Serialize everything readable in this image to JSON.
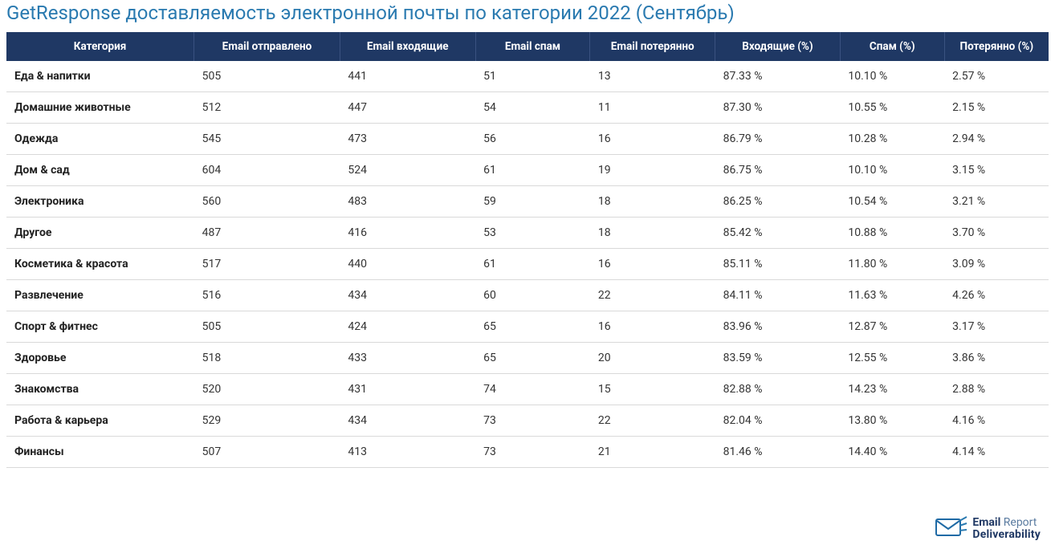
{
  "title": "GetResponse доставляемость электронной почты по категории 2022 (Сентябрь)",
  "colors": {
    "title": "#2a7ab0",
    "header_bg": "#1f3864",
    "header_text": "#ffffff",
    "row_border": "#d9d9d9",
    "cell_text": "#333333",
    "category_text": "#222222"
  },
  "table": {
    "columns": [
      "Категория",
      "Email отправлено",
      "Email входящие",
      "Email спам",
      "Email потерянно",
      "Входящие (%)",
      "Спам (%)",
      "Потерянно (%)"
    ],
    "column_widths_pct": [
      18,
      14,
      13,
      11,
      12,
      12,
      10,
      10
    ],
    "rows": [
      [
        "Еда & напитки",
        "505",
        "441",
        "51",
        "13",
        "87.33 %",
        "10.10 %",
        "2.57 %"
      ],
      [
        "Домашние животные",
        "512",
        "447",
        "54",
        "11",
        "87.30 %",
        "10.55 %",
        "2.15 %"
      ],
      [
        "Одежда",
        "545",
        "473",
        "56",
        "16",
        "86.79 %",
        "10.28 %",
        "2.94 %"
      ],
      [
        "Дом & сад",
        "604",
        "524",
        "61",
        "19",
        "86.75 %",
        "10.10 %",
        "3.15 %"
      ],
      [
        "Электроника",
        "560",
        "483",
        "59",
        "18",
        "86.25 %",
        "10.54 %",
        "3.21 %"
      ],
      [
        "Другое",
        "487",
        "416",
        "53",
        "18",
        "85.42 %",
        "10.88 %",
        "3.70 %"
      ],
      [
        "Косметика & красота",
        "517",
        "440",
        "61",
        "16",
        "85.11 %",
        "11.80 %",
        "3.09 %"
      ],
      [
        "Развлечение",
        "516",
        "434",
        "60",
        "22",
        "84.11 %",
        "11.63 %",
        "4.26 %"
      ],
      [
        "Спорт & фитнес",
        "505",
        "424",
        "65",
        "16",
        "83.96 %",
        "12.87 %",
        "3.17 %"
      ],
      [
        "Здоровье",
        "518",
        "433",
        "65",
        "20",
        "83.59 %",
        "12.55 %",
        "3.86 %"
      ],
      [
        "Знакомства",
        "520",
        "431",
        "74",
        "15",
        "82.88 %",
        "14.23 %",
        "2.88 %"
      ],
      [
        "Работа & карьера",
        "529",
        "434",
        "73",
        "22",
        "82.04 %",
        "13.80 %",
        "4.16 %"
      ],
      [
        "Финансы",
        "507",
        "413",
        "73",
        "21",
        "81.46 %",
        "14.40 %",
        "4.14 %"
      ]
    ]
  },
  "logo": {
    "line1_strong": "Email",
    "line1_light": " Report",
    "line2": "Deliverability",
    "icon_color": "#1f6aa5",
    "accent_color": "#2a7ab0"
  }
}
